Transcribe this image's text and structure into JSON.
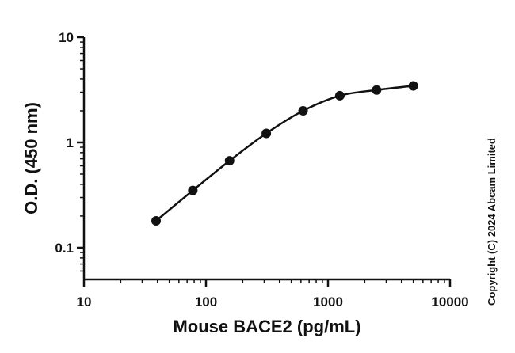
{
  "chart_data": {
    "type": "scatter",
    "xlabel": "Mouse BACE2 (pg/mL)",
    "ylabel": "O.D. (450 nm)",
    "x_scale": "log",
    "y_scale": "log",
    "xlim": [
      10,
      10000
    ],
    "ylim": [
      0.05,
      10
    ],
    "x_ticks": [
      "10",
      "100",
      "1000",
      "10000"
    ],
    "y_ticks": [
      "10",
      "1",
      "0.1"
    ],
    "grid": false,
    "series": [
      {
        "x": [
          39,
          78,
          156,
          312,
          625,
          1250,
          2500,
          5000
        ],
        "y": [
          0.18,
          0.35,
          0.67,
          1.22,
          2.0,
          2.78,
          3.15,
          3.45
        ],
        "fit_curve": true
      }
    ]
  },
  "copyright": "Copyright (C) 2024 Abcam Limited"
}
